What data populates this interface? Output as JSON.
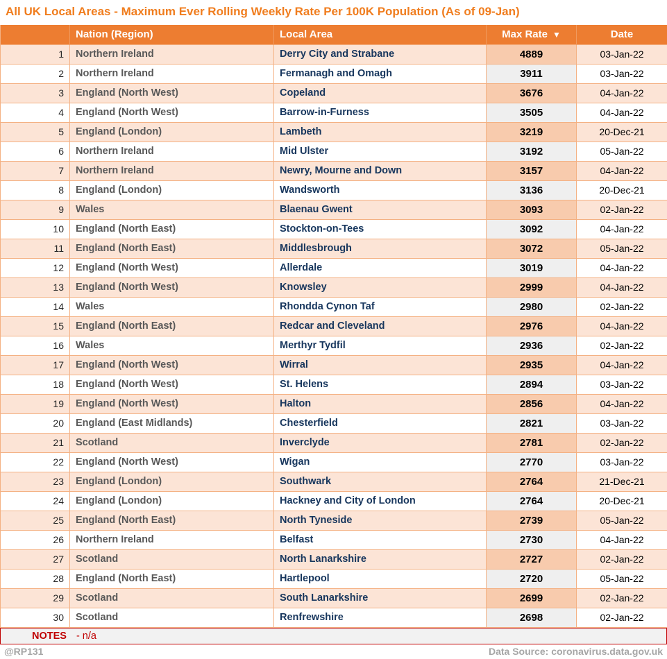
{
  "title": "All UK Local Areas - Maximum Ever Rolling Weekly Rate Per 100K Population (As of 09-Jan)",
  "colors": {
    "title_orange": "#F07D1E",
    "header_orange": "#ED7D31",
    "row_peach": "#FCE4D6",
    "rate_cell_peach": "#F8CBAD",
    "rate_cell_gray": "#EFEFEF",
    "border_orange": "#F4B183",
    "notes_red": "#C00000",
    "nation_gray": "#595959",
    "local_area_navy": "#17365D",
    "footer_gray": "#A6A6A6"
  },
  "chart_data": {
    "type": "table",
    "columns": [
      "",
      "Nation (Region)",
      "Local Area",
      "Max Rate",
      "Date"
    ],
    "sort": {
      "column": "Max Rate",
      "direction": "desc",
      "indicator": "▼"
    },
    "rows": [
      {
        "rank": 1,
        "nation": "Northern Ireland",
        "local_area": "Derry City and Strabane",
        "max_rate": 4889,
        "date": "03-Jan-22"
      },
      {
        "rank": 2,
        "nation": "Northern Ireland",
        "local_area": "Fermanagh and Omagh",
        "max_rate": 3911,
        "date": "03-Jan-22"
      },
      {
        "rank": 3,
        "nation": "England (North West)",
        "local_area": "Copeland",
        "max_rate": 3676,
        "date": "04-Jan-22"
      },
      {
        "rank": 4,
        "nation": "England (North West)",
        "local_area": "Barrow-in-Furness",
        "max_rate": 3505,
        "date": "04-Jan-22"
      },
      {
        "rank": 5,
        "nation": "England (London)",
        "local_area": "Lambeth",
        "max_rate": 3219,
        "date": "20-Dec-21"
      },
      {
        "rank": 6,
        "nation": "Northern Ireland",
        "local_area": "Mid Ulster",
        "max_rate": 3192,
        "date": "05-Jan-22"
      },
      {
        "rank": 7,
        "nation": "Northern Ireland",
        "local_area": "Newry, Mourne and Down",
        "max_rate": 3157,
        "date": "04-Jan-22"
      },
      {
        "rank": 8,
        "nation": "England (London)",
        "local_area": "Wandsworth",
        "max_rate": 3136,
        "date": "20-Dec-21"
      },
      {
        "rank": 9,
        "nation": "Wales",
        "local_area": "Blaenau Gwent",
        "max_rate": 3093,
        "date": "02-Jan-22"
      },
      {
        "rank": 10,
        "nation": "England (North East)",
        "local_area": "Stockton-on-Tees",
        "max_rate": 3092,
        "date": "04-Jan-22"
      },
      {
        "rank": 11,
        "nation": "England (North East)",
        "local_area": "Middlesbrough",
        "max_rate": 3072,
        "date": "05-Jan-22"
      },
      {
        "rank": 12,
        "nation": "England (North West)",
        "local_area": "Allerdale",
        "max_rate": 3019,
        "date": "04-Jan-22"
      },
      {
        "rank": 13,
        "nation": "England (North West)",
        "local_area": "Knowsley",
        "max_rate": 2999,
        "date": "04-Jan-22"
      },
      {
        "rank": 14,
        "nation": "Wales",
        "local_area": "Rhondda Cynon Taf",
        "max_rate": 2980,
        "date": "02-Jan-22"
      },
      {
        "rank": 15,
        "nation": "England (North East)",
        "local_area": "Redcar and Cleveland",
        "max_rate": 2976,
        "date": "04-Jan-22"
      },
      {
        "rank": 16,
        "nation": "Wales",
        "local_area": "Merthyr Tydfil",
        "max_rate": 2936,
        "date": "02-Jan-22"
      },
      {
        "rank": 17,
        "nation": "England (North West)",
        "local_area": "Wirral",
        "max_rate": 2935,
        "date": "04-Jan-22"
      },
      {
        "rank": 18,
        "nation": "England (North West)",
        "local_area": "St. Helens",
        "max_rate": 2894,
        "date": "03-Jan-22"
      },
      {
        "rank": 19,
        "nation": "England (North West)",
        "local_area": "Halton",
        "max_rate": 2856,
        "date": "04-Jan-22"
      },
      {
        "rank": 20,
        "nation": "England (East Midlands)",
        "local_area": "Chesterfield",
        "max_rate": 2821,
        "date": "03-Jan-22"
      },
      {
        "rank": 21,
        "nation": "Scotland",
        "local_area": "Inverclyde",
        "max_rate": 2781,
        "date": "02-Jan-22"
      },
      {
        "rank": 22,
        "nation": "England (North West)",
        "local_area": "Wigan",
        "max_rate": 2770,
        "date": "03-Jan-22"
      },
      {
        "rank": 23,
        "nation": "England (London)",
        "local_area": "Southwark",
        "max_rate": 2764,
        "date": "21-Dec-21"
      },
      {
        "rank": 24,
        "nation": "England (London)",
        "local_area": "Hackney and City of London",
        "max_rate": 2764,
        "date": "20-Dec-21"
      },
      {
        "rank": 25,
        "nation": "England (North East)",
        "local_area": "North Tyneside",
        "max_rate": 2739,
        "date": "05-Jan-22"
      },
      {
        "rank": 26,
        "nation": "Northern Ireland",
        "local_area": "Belfast",
        "max_rate": 2730,
        "date": "04-Jan-22"
      },
      {
        "rank": 27,
        "nation": "Scotland",
        "local_area": "North Lanarkshire",
        "max_rate": 2727,
        "date": "02-Jan-22"
      },
      {
        "rank": 28,
        "nation": "England (North East)",
        "local_area": "Hartlepool",
        "max_rate": 2720,
        "date": "05-Jan-22"
      },
      {
        "rank": 29,
        "nation": "Scotland",
        "local_area": "South Lanarkshire",
        "max_rate": 2699,
        "date": "02-Jan-22"
      },
      {
        "rank": 30,
        "nation": "Scotland",
        "local_area": "Renfrewshire",
        "max_rate": 2698,
        "date": "02-Jan-22"
      }
    ]
  },
  "notes": {
    "label": "NOTES",
    "text": "- n/a"
  },
  "footer": {
    "handle": "@RP131",
    "data_source": "Data Source: coronavirus.data.gov.uk"
  }
}
